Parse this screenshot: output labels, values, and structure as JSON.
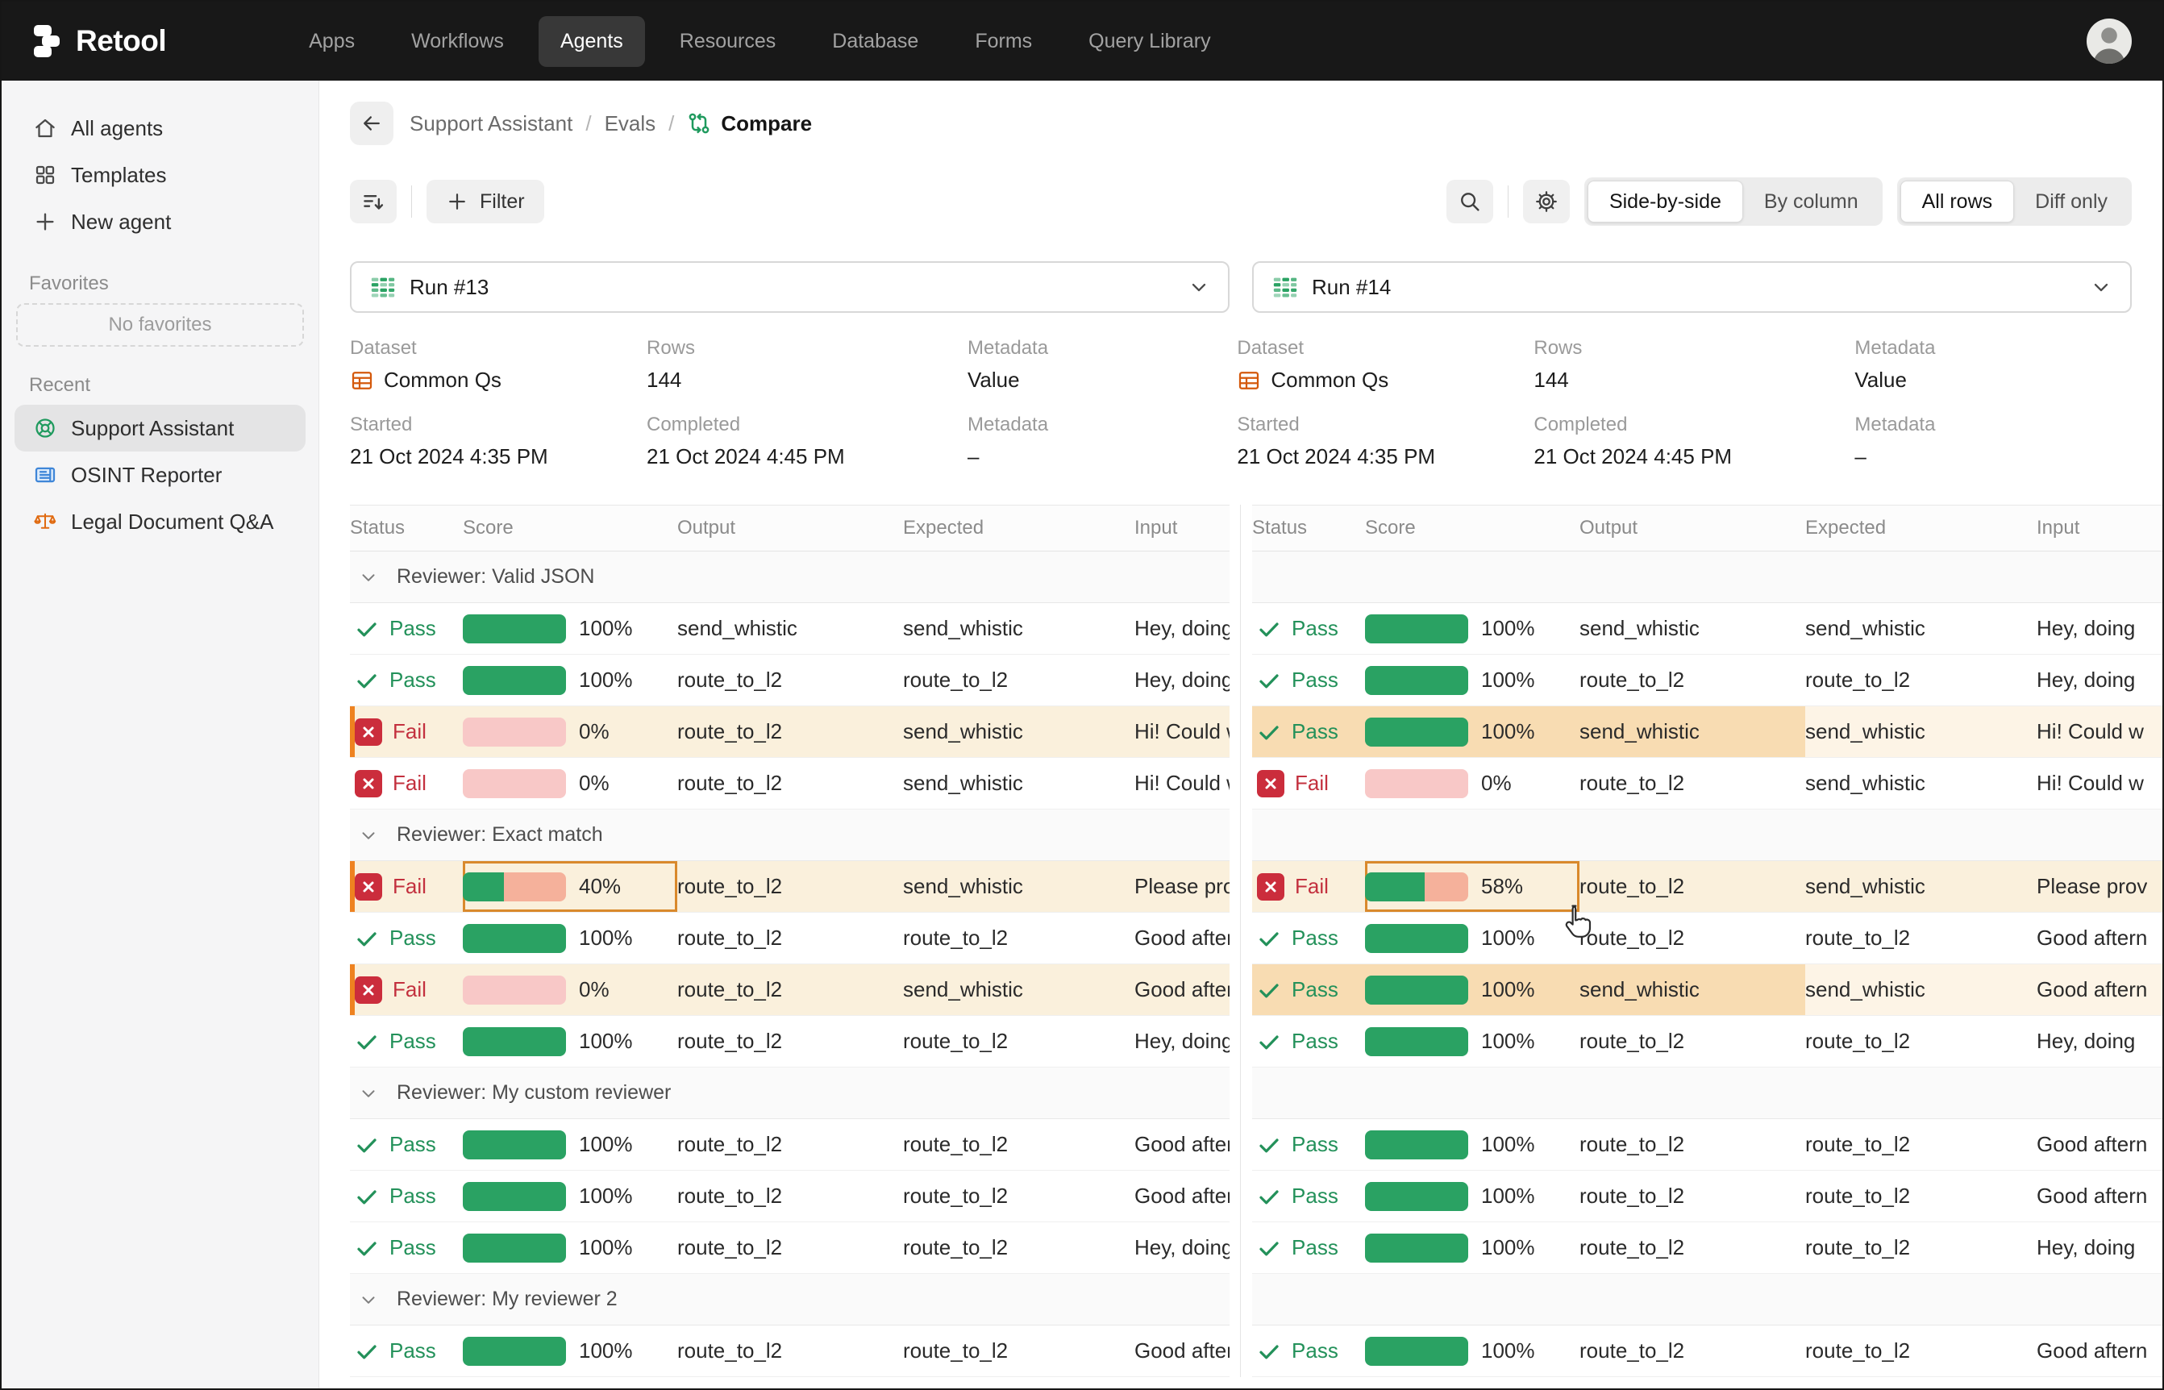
{
  "nav": {
    "logo": "Retool",
    "items": [
      {
        "label": "Apps",
        "active": false
      },
      {
        "label": "Workflows",
        "active": false
      },
      {
        "label": "Agents",
        "active": true
      },
      {
        "label": "Resources",
        "active": false
      },
      {
        "label": "Database",
        "active": false
      },
      {
        "label": "Forms",
        "active": false
      },
      {
        "label": "Query Library",
        "active": false
      }
    ]
  },
  "sidebar": {
    "items": [
      {
        "label": "All agents",
        "icon": "home"
      },
      {
        "label": "Templates",
        "icon": "grid"
      },
      {
        "label": "New agent",
        "icon": "plus"
      }
    ],
    "favorites_label": "Favorites",
    "no_favorites": "No favorites",
    "recent_label": "Recent",
    "recent": [
      {
        "label": "Support Assistant",
        "icon": "lifebuoy",
        "selected": true
      },
      {
        "label": "OSINT Reporter",
        "icon": "newspaper",
        "selected": false
      },
      {
        "label": "Legal Document Q&A",
        "icon": "scales",
        "selected": false
      }
    ]
  },
  "breadcrumb": {
    "items": [
      "Support Assistant",
      "Evals"
    ],
    "sep": "/",
    "current": "Compare"
  },
  "toolbar": {
    "filter_label": "Filter",
    "view_toggle": {
      "options": [
        "Side-by-side",
        "By column"
      ],
      "active": "Side-by-side"
    },
    "rows_toggle": {
      "options": [
        "All rows",
        "Diff only"
      ],
      "active": "All rows"
    }
  },
  "meta_labels": {
    "dataset": "Dataset",
    "rows": "Rows",
    "metadata": "Metadata",
    "started": "Started",
    "completed": "Completed",
    "metadata2": "Metadata"
  },
  "runs": [
    {
      "name": "Run #13",
      "dataset": "Common Qs",
      "rows": "144",
      "metadata": "Value",
      "started": "21 Oct 2024 4:35 PM",
      "completed": "21 Oct 2024 4:45 PM",
      "metadata2": "–"
    },
    {
      "name": "Run #14",
      "dataset": "Common Qs",
      "rows": "144",
      "metadata": "Value",
      "started": "21 Oct 2024 4:35 PM",
      "completed": "21 Oct 2024 4:45 PM",
      "metadata2": "–"
    }
  ],
  "table": {
    "columns": [
      "Status",
      "Score",
      "Output",
      "Expected",
      "Input"
    ],
    "sections": [
      {
        "label": "Reviewer: Valid JSON",
        "left": [
          {
            "status": "Pass",
            "pct": 100,
            "pct_label": "100%",
            "output": "send_whistic",
            "expected": "send_whistic",
            "input": "Hey, doing"
          },
          {
            "status": "Pass",
            "pct": 100,
            "pct_label": "100%",
            "output": "route_to_l2",
            "expected": "route_to_l2",
            "input": "Hey, doing"
          },
          {
            "status": "Fail",
            "pct": 0,
            "pct_label": "0%",
            "output": "route_to_l2",
            "expected": "send_whistic",
            "input": "Hi! Could w",
            "hl": "row",
            "border": true
          },
          {
            "status": "Fail",
            "pct": 0,
            "pct_label": "0%",
            "output": "route_to_l2",
            "expected": "send_whistic",
            "input": "Hi! Could w"
          }
        ],
        "right": [
          {
            "status": "Pass",
            "pct": 100,
            "pct_label": "100%",
            "output": "send_whistic",
            "expected": "send_whistic",
            "input": "Hey, doing"
          },
          {
            "status": "Pass",
            "pct": 100,
            "pct_label": "100%",
            "output": "route_to_l2",
            "expected": "route_to_l2",
            "input": "Hey, doing"
          },
          {
            "status": "Pass",
            "pct": 100,
            "pct_label": "100%",
            "output": "send_whistic",
            "expected": "send_whistic",
            "input": "Hi! Could w",
            "hl": "cells"
          },
          {
            "status": "Fail",
            "pct": 0,
            "pct_label": "0%",
            "output": "route_to_l2",
            "expected": "send_whistic",
            "input": "Hi! Could w"
          }
        ]
      },
      {
        "label": "Reviewer: Exact match",
        "left": [
          {
            "status": "Fail",
            "pct": 40,
            "pct_label": "40%",
            "output": "route_to_l2",
            "expected": "send_whistic",
            "input": "Please prov",
            "hl": "row",
            "border": true,
            "sel": true
          },
          {
            "status": "Pass",
            "pct": 100,
            "pct_label": "100%",
            "output": "route_to_l2",
            "expected": "route_to_l2",
            "input": "Good afterr"
          },
          {
            "status": "Fail",
            "pct": 0,
            "pct_label": "0%",
            "output": "route_to_l2",
            "expected": "send_whistic",
            "input": "Good afterr",
            "hl": "row",
            "border": true
          },
          {
            "status": "Pass",
            "pct": 100,
            "pct_label": "100%",
            "output": "route_to_l2",
            "expected": "route_to_l2",
            "input": "Hey, doing"
          }
        ],
        "right": [
          {
            "status": "Fail",
            "pct": 58,
            "pct_label": "58%",
            "output": "route_to_l2",
            "expected": "send_whistic",
            "input": "Please prov",
            "hl": "row",
            "sel": true
          },
          {
            "status": "Pass",
            "pct": 100,
            "pct_label": "100%",
            "output": "route_to_l2",
            "expected": "route_to_l2",
            "input": "Good aftern"
          },
          {
            "status": "Pass",
            "pct": 100,
            "pct_label": "100%",
            "output": "send_whistic",
            "expected": "send_whistic",
            "input": "Good aftern",
            "hl": "cells"
          },
          {
            "status": "Pass",
            "pct": 100,
            "pct_label": "100%",
            "output": "route_to_l2",
            "expected": "route_to_l2",
            "input": "Hey, doing"
          }
        ]
      },
      {
        "label": "Reviewer: My custom reviewer",
        "left": [
          {
            "status": "Pass",
            "pct": 100,
            "pct_label": "100%",
            "output": "route_to_l2",
            "expected": "route_to_l2",
            "input": "Good afterr"
          },
          {
            "status": "Pass",
            "pct": 100,
            "pct_label": "100%",
            "output": "route_to_l2",
            "expected": "route_to_l2",
            "input": "Good afterr"
          },
          {
            "status": "Pass",
            "pct": 100,
            "pct_label": "100%",
            "output": "route_to_l2",
            "expected": "route_to_l2",
            "input": "Hey, doing"
          }
        ],
        "right": [
          {
            "status": "Pass",
            "pct": 100,
            "pct_label": "100%",
            "output": "route_to_l2",
            "expected": "route_to_l2",
            "input": "Good aftern"
          },
          {
            "status": "Pass",
            "pct": 100,
            "pct_label": "100%",
            "output": "route_to_l2",
            "expected": "route_to_l2",
            "input": "Good aftern"
          },
          {
            "status": "Pass",
            "pct": 100,
            "pct_label": "100%",
            "output": "route_to_l2",
            "expected": "route_to_l2",
            "input": "Hey, doing"
          }
        ]
      },
      {
        "label": "Reviewer: My reviewer 2",
        "left": [
          {
            "status": "Pass",
            "pct": 100,
            "pct_label": "100%",
            "output": "route_to_l2",
            "expected": "route_to_l2",
            "input": "Good afterr"
          }
        ],
        "right": [
          {
            "status": "Pass",
            "pct": 100,
            "pct_label": "100%",
            "output": "route_to_l2",
            "expected": "route_to_l2",
            "input": "Good aftern"
          }
        ]
      }
    ]
  },
  "colors": {
    "green": "#2aa263",
    "pass_text": "#23915a",
    "fail_text": "#c3303e",
    "fail_bg": "#cb2d3c",
    "bar_zero": "#f8c8c7",
    "bar_remainder": "#f5b19b",
    "row_highlight": "#faf0dc",
    "cells_highlight": "#f8dcb2",
    "cells_highlight_light": "#fdf4e6",
    "diff_left_border": "#ee8220",
    "selected_cell_border": "#d9892c",
    "topbar_bg": "#181818"
  }
}
